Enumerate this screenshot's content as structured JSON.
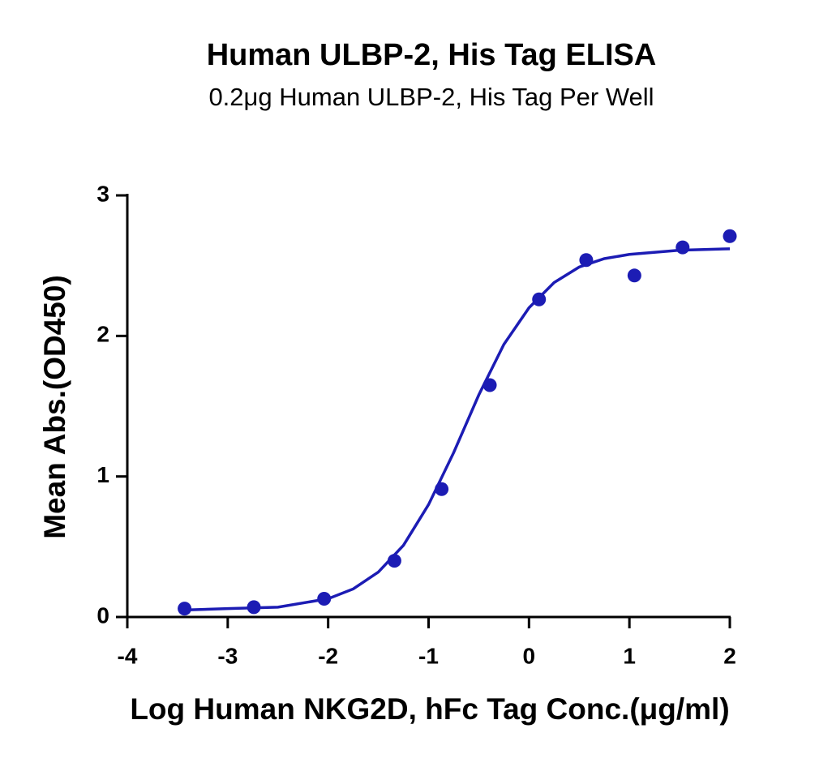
{
  "chart_data": {
    "type": "scatter",
    "title": "Human ULBP-2, His Tag ELISA",
    "subtitle": "0.2μg Human ULBP-2, His Tag Per Well",
    "x_label": "Log Human NKG2D, hFc Tag Conc.(μg/ml)",
    "y_label": "Mean Abs.(OD450)",
    "color": "#1c1cb4",
    "x": [
      -3.43,
      -2.74,
      -2.04,
      -1.34,
      -0.87,
      -0.39,
      0.1,
      0.57,
      1.05,
      1.53,
      2.0
    ],
    "values": [
      0.06,
      0.07,
      0.13,
      0.4,
      0.91,
      1.65,
      2.26,
      2.54,
      2.43,
      2.63,
      2.71
    ],
    "fit": {
      "x": [
        -3.43,
        -3,
        -2.5,
        -2,
        -1.75,
        -1.5,
        -1.25,
        -1,
        -0.75,
        -0.5,
        -0.25,
        0,
        0.25,
        0.5,
        0.75,
        1,
        1.5,
        2
      ],
      "values": [
        0.05,
        0.06,
        0.07,
        0.13,
        0.2,
        0.32,
        0.51,
        0.8,
        1.17,
        1.58,
        1.94,
        2.2,
        2.38,
        2.49,
        2.55,
        2.58,
        2.61,
        2.62
      ]
    },
    "xlim": [
      -4,
      2
    ],
    "xticks": [
      -4,
      -3,
      -2,
      -1,
      0,
      1,
      2
    ],
    "ylim": [
      0,
      3
    ],
    "yticks": [
      0,
      1,
      2,
      3
    ]
  }
}
